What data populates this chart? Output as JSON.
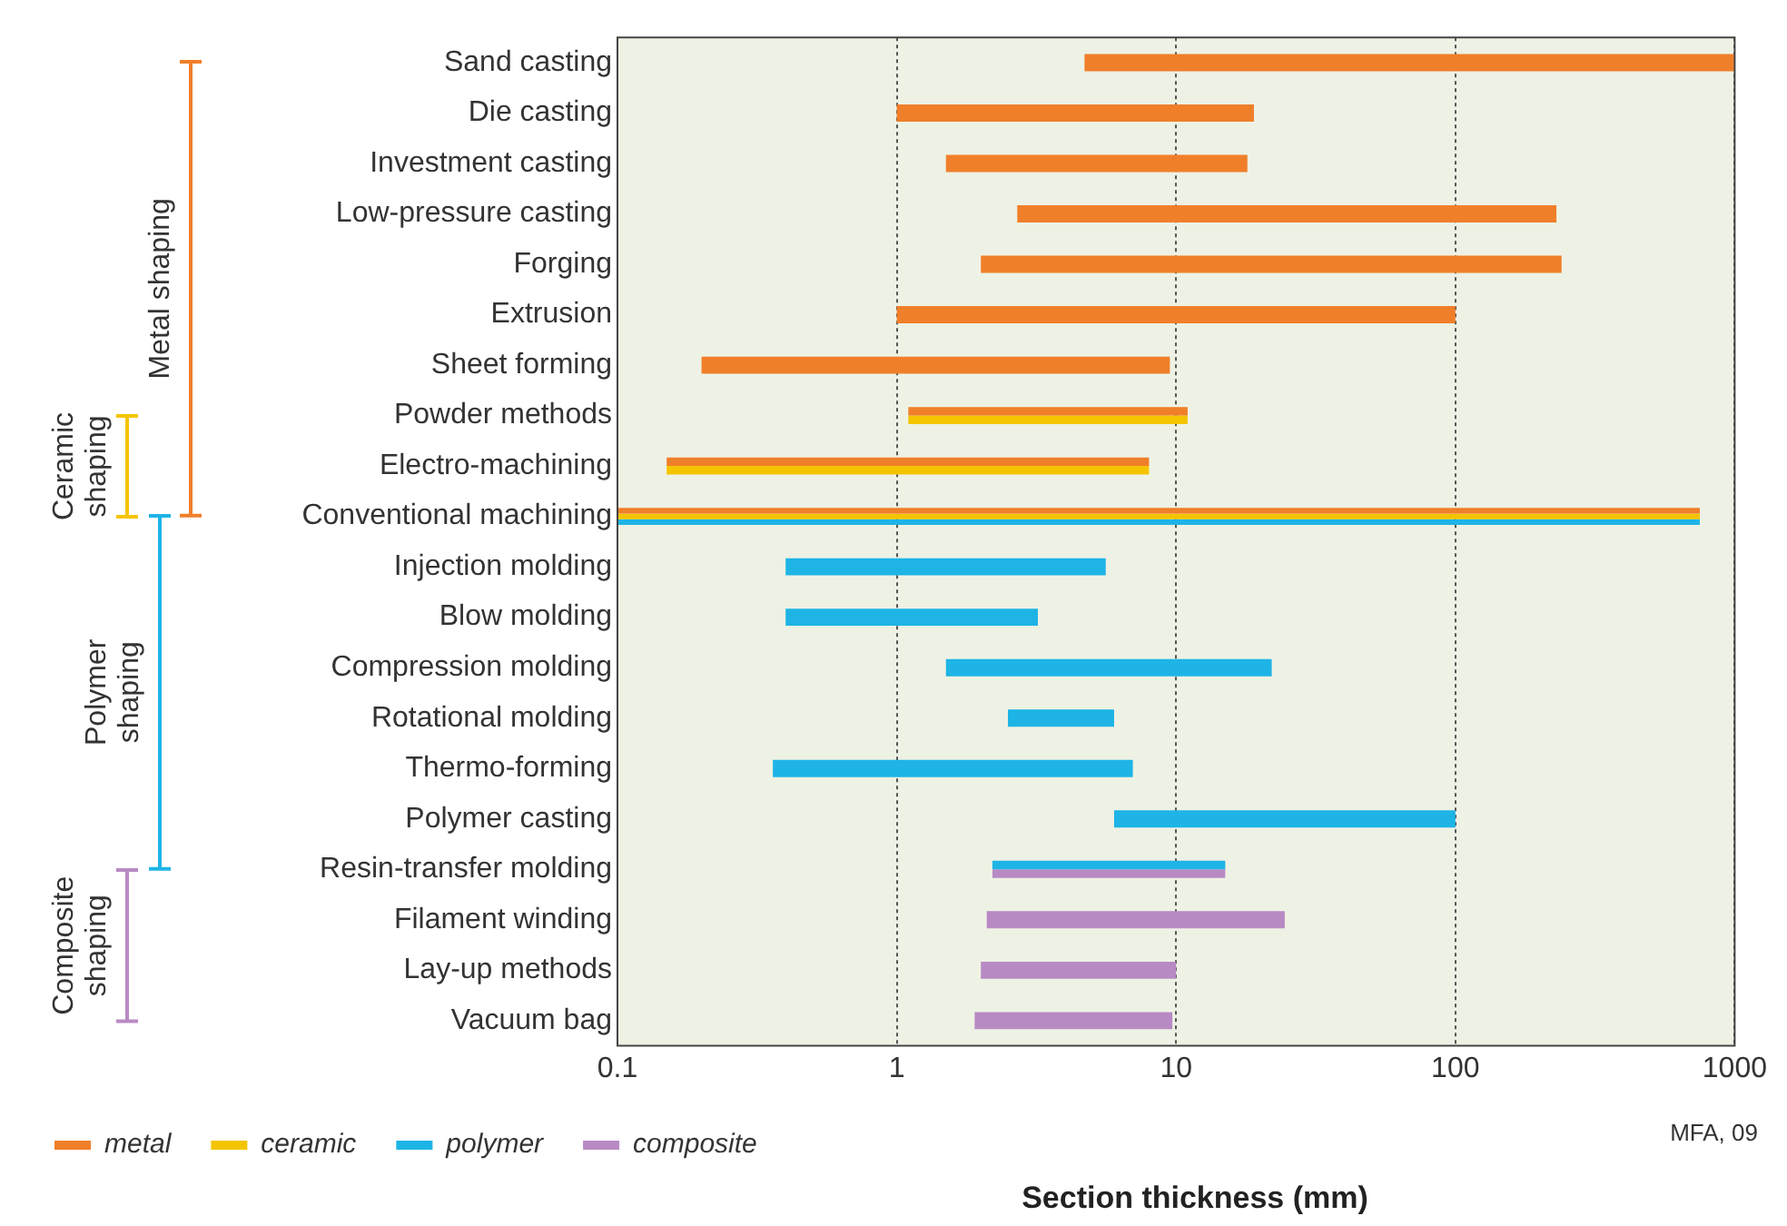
{
  "chart_data": {
    "type": "bar",
    "orientation": "horizontal",
    "xlabel": "Section thickness (mm)",
    "categories": [
      "Sand casting",
      "Die casting",
      "Investment casting",
      "Low-pressure casting",
      "Forging",
      "Extrusion",
      "Sheet forming",
      "Powder methods",
      "Electro-machining",
      "Conventional machining",
      "Injection molding",
      "Blow molding",
      "Compression molding",
      "Rotational molding",
      "Thermo-forming",
      "Polymer casting",
      "Resin-transfer molding",
      "Filament winding",
      "Lay-up methods",
      "Vacuum bag"
    ],
    "series": [
      {
        "name": "metal",
        "color": "#f07f2a",
        "base": [
          4.7,
          1,
          1.5,
          2.7,
          2,
          1,
          0.2,
          1.1,
          0.15,
          0.1,
          null,
          null,
          null,
          null,
          null,
          null,
          null,
          null,
          null,
          null
        ],
        "values": [
          995.3,
          18,
          16.5,
          227.3,
          238,
          99,
          9.3,
          9.9,
          7.85,
          749.9,
          null,
          null,
          null,
          null,
          null,
          null,
          null,
          null,
          null,
          null
        ]
      },
      {
        "name": "ceramic",
        "color": "#f5c400",
        "base": [
          null,
          null,
          null,
          null,
          null,
          null,
          null,
          1.1,
          0.15,
          0.1,
          null,
          null,
          null,
          null,
          null,
          null,
          null,
          null,
          null,
          null
        ],
        "values": [
          null,
          null,
          null,
          null,
          null,
          null,
          null,
          9.9,
          7.85,
          749.9,
          null,
          null,
          null,
          null,
          null,
          null,
          null,
          null,
          null,
          null
        ]
      },
      {
        "name": "polymer",
        "color": "#1eb4e6",
        "base": [
          null,
          null,
          null,
          null,
          null,
          null,
          null,
          null,
          null,
          0.1,
          0.4,
          0.4,
          1.5,
          2.5,
          0.36,
          6,
          2.2,
          null,
          null,
          null
        ],
        "values": [
          null,
          null,
          null,
          null,
          null,
          null,
          null,
          null,
          null,
          749.9,
          5.2,
          2.8,
          20.5,
          3.5,
          6.64,
          94,
          12.8,
          null,
          null,
          null
        ]
      },
      {
        "name": "composite",
        "color": "#b88ac4",
        "base": [
          null,
          null,
          null,
          null,
          null,
          null,
          null,
          null,
          null,
          null,
          null,
          null,
          null,
          null,
          null,
          null,
          2.2,
          2.1,
          2,
          1.9
        ],
        "values": [
          null,
          null,
          null,
          null,
          null,
          null,
          null,
          null,
          null,
          null,
          null,
          null,
          null,
          null,
          null,
          null,
          12.8,
          22.4,
          8,
          7.8
        ]
      }
    ],
    "log": "x",
    "xlim": [
      0.1,
      1000
    ],
    "xticks": [
      0.1,
      1,
      10,
      100,
      1000
    ],
    "grid": "x",
    "legend": "bottom",
    "annotations": [
      "Metal shaping",
      "Ceramic shaping",
      "Polymer shaping",
      "Composite shaping",
      "MFA, 09"
    ]
  }
}
